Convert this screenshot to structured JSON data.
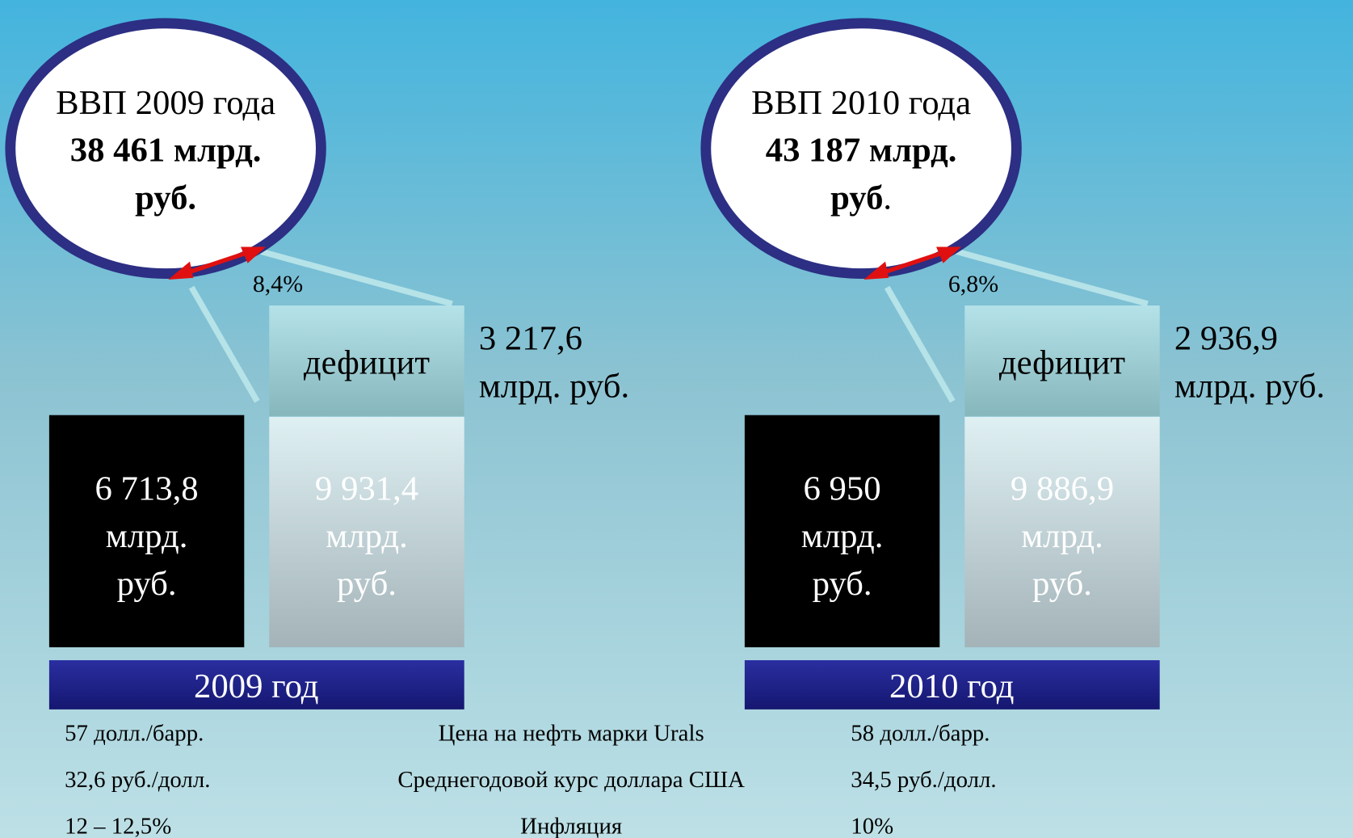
{
  "panels": [
    {
      "gdp_title": "ВВП 2009 года",
      "gdp_value": "38 461 млрд.",
      "gdp_unit": "руб.",
      "share": "8,4%",
      "deficit_label": "дефицит",
      "deficit_value": "3 217,6",
      "deficit_unit": "млрд. руб.",
      "dark_box": [
        "6 713,8",
        "млрд.",
        "руб."
      ],
      "light_box": [
        "9 931,4",
        "млрд.",
        "руб."
      ],
      "year": "2009 год"
    },
    {
      "gdp_title": "ВВП 2010 года",
      "gdp_value": "43 187 млрд.",
      "gdp_unit": "руб",
      "gdp_unit_suffix": ".",
      "share": "6,8%",
      "deficit_label": "дефицит",
      "deficit_value": "2 936,9",
      "deficit_unit": "млрд. руб.",
      "dark_box": [
        "6 950",
        "млрд.",
        "руб."
      ],
      "light_box": [
        "9 886,9",
        "млрд.",
        "руб."
      ],
      "year": "2010 год"
    }
  ],
  "indicators": [
    {
      "y2009": "57 долл./барр.",
      "name": "Цена на нефть марки Urals",
      "y2010": "58 долл./барр."
    },
    {
      "y2009": "32,6 руб./долл.",
      "name": "Среднегодовой курс доллара США",
      "y2010": "34,5 руб./долл."
    },
    {
      "y2009": "12 – 12,5%",
      "name": "Инфляция",
      "y2010": "10%"
    }
  ]
}
